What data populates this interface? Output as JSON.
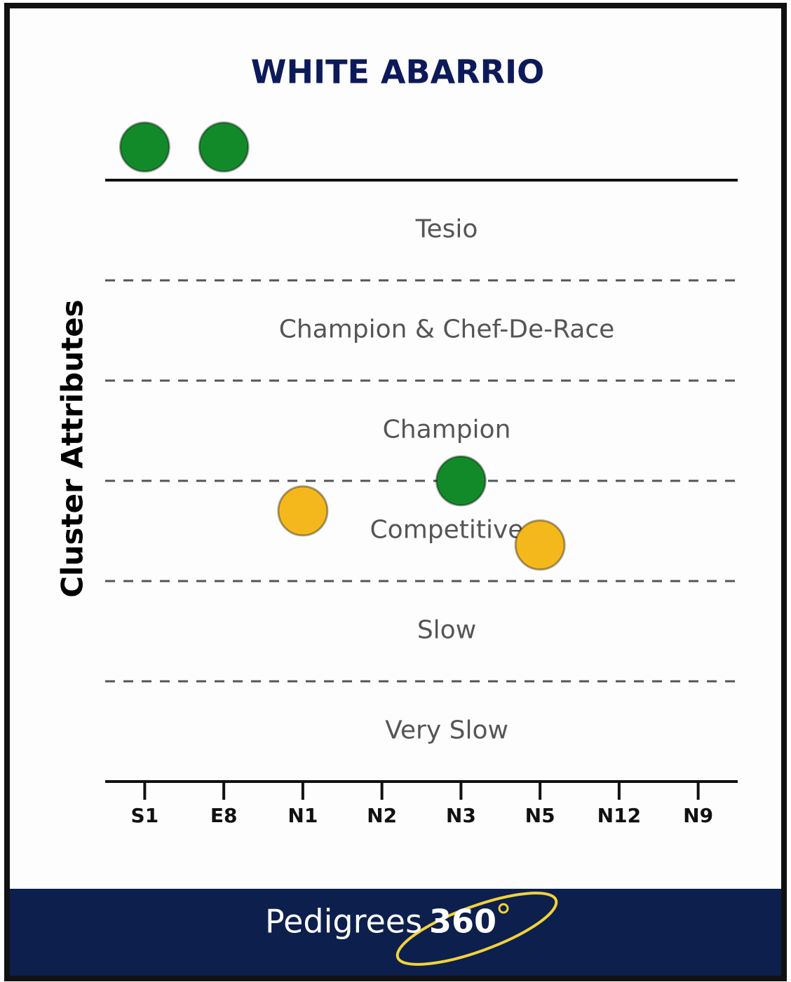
{
  "chart_data": {
    "type": "scatter",
    "title": "WHITE ABARRIO",
    "y_label": "Cluster Attributes",
    "categories": [
      "S1",
      "E8",
      "N1",
      "N2",
      "N3",
      "N5",
      "N12",
      "N9"
    ],
    "values": [
      6.33,
      6.33,
      2.7,
      null,
      3.0,
      2.36,
      null,
      null
    ],
    "point_colors": [
      "#138a2a",
      "#138a2a",
      "#f5b81c",
      null,
      "#138a2a",
      "#f5b81c",
      null,
      null
    ],
    "ylim": [
      0,
      6.5
    ],
    "yticks": [
      0,
      1,
      2,
      3,
      4,
      5,
      6
    ],
    "y_band_labels": [
      "Very Slow",
      "Slow",
      "Competitive",
      "Champion",
      "Champion & Chef-De-Race",
      "Tesio"
    ]
  },
  "footer": {
    "brand": "Pedigrees",
    "brand_number": "360"
  }
}
